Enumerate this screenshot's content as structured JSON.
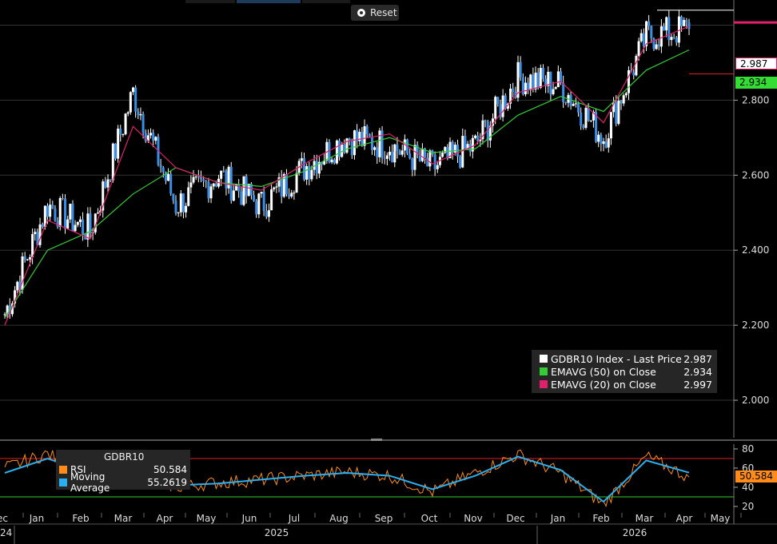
{
  "toolbar": {
    "reset_label": "Reset"
  },
  "colors": {
    "background": "#000000",
    "price": "#ffffff",
    "candle_down": "#3a8ee6",
    "ema50": "#33cc33",
    "ema20": "#e0206a",
    "rsi": "#ff8c1a",
    "rsi_ma": "#2ab0f0",
    "hline": "#e02020"
  },
  "price_axis": {
    "ticks": [
      "2.800",
      "2.600",
      "2.400",
      "2.200",
      "2.000"
    ]
  },
  "price_tags": {
    "last": "2.987",
    "ema50": "2.934"
  },
  "legend": {
    "rows": [
      {
        "name": "GDBR10 Index - Last Price",
        "value": "2.987",
        "color": "#ffffff"
      },
      {
        "name": "EMAVG (50)  on Close",
        "value": "2.934",
        "color": "#33cc33"
      },
      {
        "name": "EMAVG (20)  on Close",
        "value": "2.997",
        "color": "#e0206a"
      }
    ]
  },
  "rsi_panel": {
    "title": "GDBR10",
    "rows": [
      {
        "name": "RSI",
        "value": "50.584",
        "color": "#ff8c1a"
      },
      {
        "name": "Moving Average",
        "value": "55.2619",
        "color": "#2ab0f0"
      }
    ],
    "ticks": [
      "80",
      "60",
      "40",
      "20"
    ],
    "tag": "50.584"
  },
  "time_axis": {
    "months": [
      "ec",
      "Jan",
      "Feb",
      "Mar",
      "Apr",
      "May",
      "Jun",
      "Jul",
      "Aug",
      "Sep",
      "Oct",
      "Nov",
      "Dec",
      "Jan",
      "Feb",
      "Mar",
      "Apr",
      "May"
    ],
    "years": [
      "24",
      "2025",
      "2026"
    ]
  },
  "chart_data": {
    "type": "line",
    "title": "GDBR10 Index",
    "y_range": [
      1.9,
      3.05
    ],
    "x": [
      "2024-12",
      "2025-01",
      "2025-02",
      "2025-03",
      "2025-04",
      "2025-05",
      "2025-06",
      "2025-07",
      "2025-08",
      "2025-09",
      "2025-10",
      "2025-11",
      "2025-12",
      "2026-01",
      "2026-02",
      "2026-03",
      "2026-04"
    ],
    "series": [
      {
        "name": "GDBR10 Index - Last Price",
        "values": [
          2.23,
          2.52,
          2.45,
          2.82,
          2.52,
          2.6,
          2.52,
          2.62,
          2.7,
          2.68,
          2.62,
          2.68,
          2.86,
          2.84,
          2.7,
          2.97,
          2.99
        ]
      },
      {
        "name": "EMAVG (50)  on Close",
        "values": [
          2.22,
          2.4,
          2.45,
          2.55,
          2.62,
          2.58,
          2.57,
          2.61,
          2.67,
          2.7,
          2.66,
          2.67,
          2.76,
          2.81,
          2.77,
          2.88,
          2.934
        ]
      },
      {
        "name": "EMAVG (20)  on Close",
        "values": [
          2.2,
          2.48,
          2.43,
          2.73,
          2.62,
          2.58,
          2.56,
          2.63,
          2.69,
          2.71,
          2.63,
          2.68,
          2.82,
          2.85,
          2.74,
          2.95,
          2.997
        ]
      }
    ],
    "rsi": {
      "y_range": [
        15,
        85
      ],
      "levels": [
        30,
        70
      ],
      "series": [
        {
          "name": "RSI",
          "values": [
            60,
            75,
            50,
            62,
            40,
            45,
            48,
            52,
            56,
            52,
            35,
            55,
            74,
            55,
            22,
            72,
            50.584
          ]
        },
        {
          "name": "Moving Average",
          "values": [
            55,
            70,
            55,
            58,
            42,
            44,
            48,
            52,
            55,
            52,
            38,
            52,
            72,
            58,
            25,
            68,
            55.2619
          ]
        }
      ]
    }
  }
}
